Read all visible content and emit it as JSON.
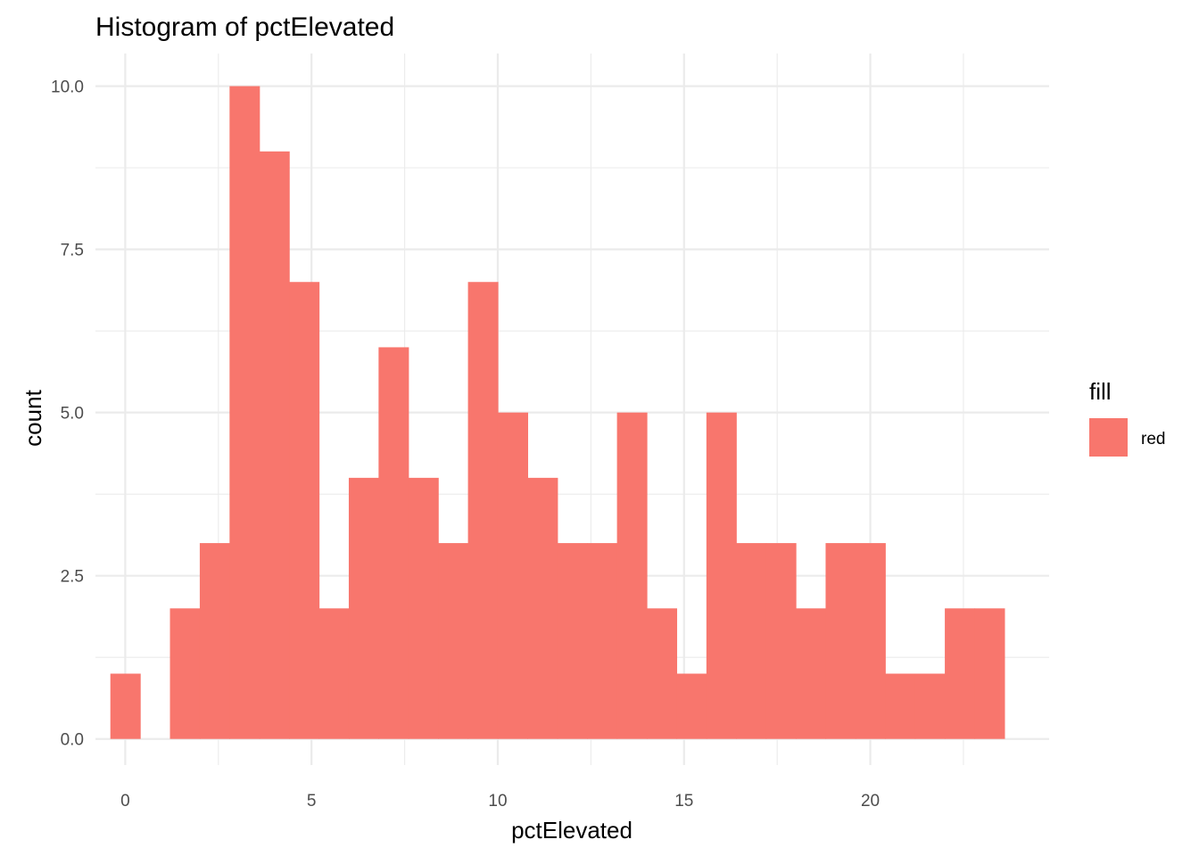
{
  "chart_data": {
    "type": "bar",
    "subtype": "histogram",
    "title": "Histogram of pctElevated",
    "xlabel": "pctElevated",
    "ylabel": "count",
    "bin_width": 0.8,
    "bins": [
      {
        "x": 0.0,
        "count": 1
      },
      {
        "x": 0.8,
        "count": 0
      },
      {
        "x": 1.6,
        "count": 2
      },
      {
        "x": 2.4,
        "count": 3
      },
      {
        "x": 3.2,
        "count": 10
      },
      {
        "x": 4.0,
        "count": 9
      },
      {
        "x": 4.8,
        "count": 7
      },
      {
        "x": 5.6,
        "count": 2
      },
      {
        "x": 6.4,
        "count": 4
      },
      {
        "x": 7.2,
        "count": 6
      },
      {
        "x": 8.0,
        "count": 4
      },
      {
        "x": 8.8,
        "count": 3
      },
      {
        "x": 9.6,
        "count": 7
      },
      {
        "x": 10.4,
        "count": 5
      },
      {
        "x": 11.2,
        "count": 4
      },
      {
        "x": 12.0,
        "count": 3
      },
      {
        "x": 12.8,
        "count": 3
      },
      {
        "x": 13.6,
        "count": 5
      },
      {
        "x": 14.4,
        "count": 2
      },
      {
        "x": 15.2,
        "count": 1
      },
      {
        "x": 16.0,
        "count": 5
      },
      {
        "x": 16.8,
        "count": 3
      },
      {
        "x": 17.6,
        "count": 3
      },
      {
        "x": 18.4,
        "count": 2
      },
      {
        "x": 19.2,
        "count": 3
      },
      {
        "x": 20.0,
        "count": 3
      },
      {
        "x": 20.8,
        "count": 1
      },
      {
        "x": 21.6,
        "count": 1
      },
      {
        "x": 22.4,
        "count": 2
      },
      {
        "x": 23.2,
        "count": 2
      }
    ],
    "xlim": [
      -0.8,
      24.8
    ],
    "ylim": [
      -0.4,
      10.5
    ],
    "x_ticks": [
      0,
      5,
      10,
      15,
      20
    ],
    "x_tick_labels": [
      "0",
      "5",
      "10",
      "15",
      "20"
    ],
    "y_ticks": [
      0,
      2.5,
      5,
      7.5,
      10
    ],
    "y_tick_labels": [
      "0.0",
      "2.5",
      "5.0",
      "7.5",
      "10.0"
    ],
    "grid": true,
    "fill_color": "#F8766D",
    "legend": {
      "title": "fill",
      "placement": "right",
      "entries": [
        {
          "label": "red",
          "color": "#F8766D"
        }
      ]
    }
  }
}
